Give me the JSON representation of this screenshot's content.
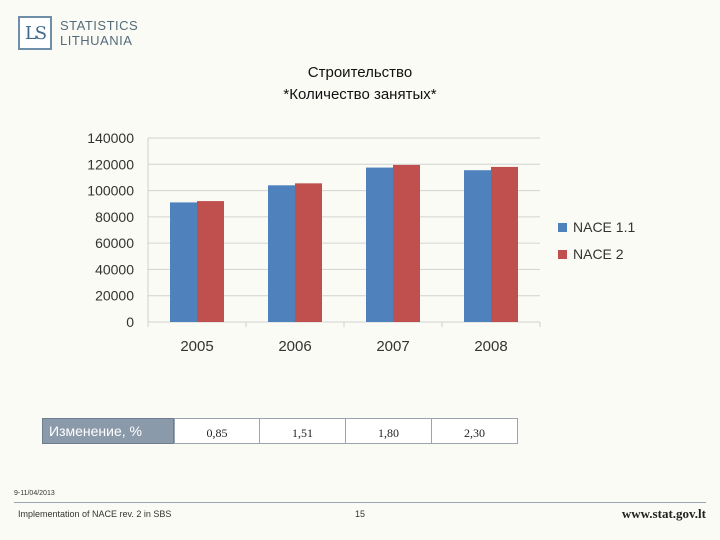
{
  "logo": {
    "mark": "LS",
    "line1": "STATISTICS",
    "line2": "LITHUANIA"
  },
  "title": {
    "line1": "Строительство",
    "line2": "*Количество занятых*"
  },
  "chart_data": {
    "type": "bar",
    "title": "Строительство *Количество занятых*",
    "categories": [
      "2005",
      "2006",
      "2007",
      "2008"
    ],
    "series": [
      {
        "name": "NACE 1.1",
        "color": "#4f81bd",
        "values": [
          91000,
          104000,
          117500,
          115500
        ]
      },
      {
        "name": "NACE 2",
        "color": "#c0504d",
        "values": [
          92000,
          105500,
          119500,
          118000
        ]
      }
    ],
    "ylim": [
      0,
      140000
    ],
    "yticks": [
      "0",
      "20000",
      "40000",
      "60000",
      "80000",
      "100000",
      "120000",
      "140000"
    ],
    "xlabel": "",
    "ylabel": "",
    "grid": true,
    "legend": "right"
  },
  "change": {
    "label": "Изменение, %",
    "values": [
      "0,85",
      "1,51",
      "1,80",
      "2,30"
    ]
  },
  "footer": {
    "date": "9-11/04/2013",
    "left": "Implementation of NACE rev. 2 in SBS",
    "page": "15",
    "url": "www.stat.gov.lt"
  }
}
